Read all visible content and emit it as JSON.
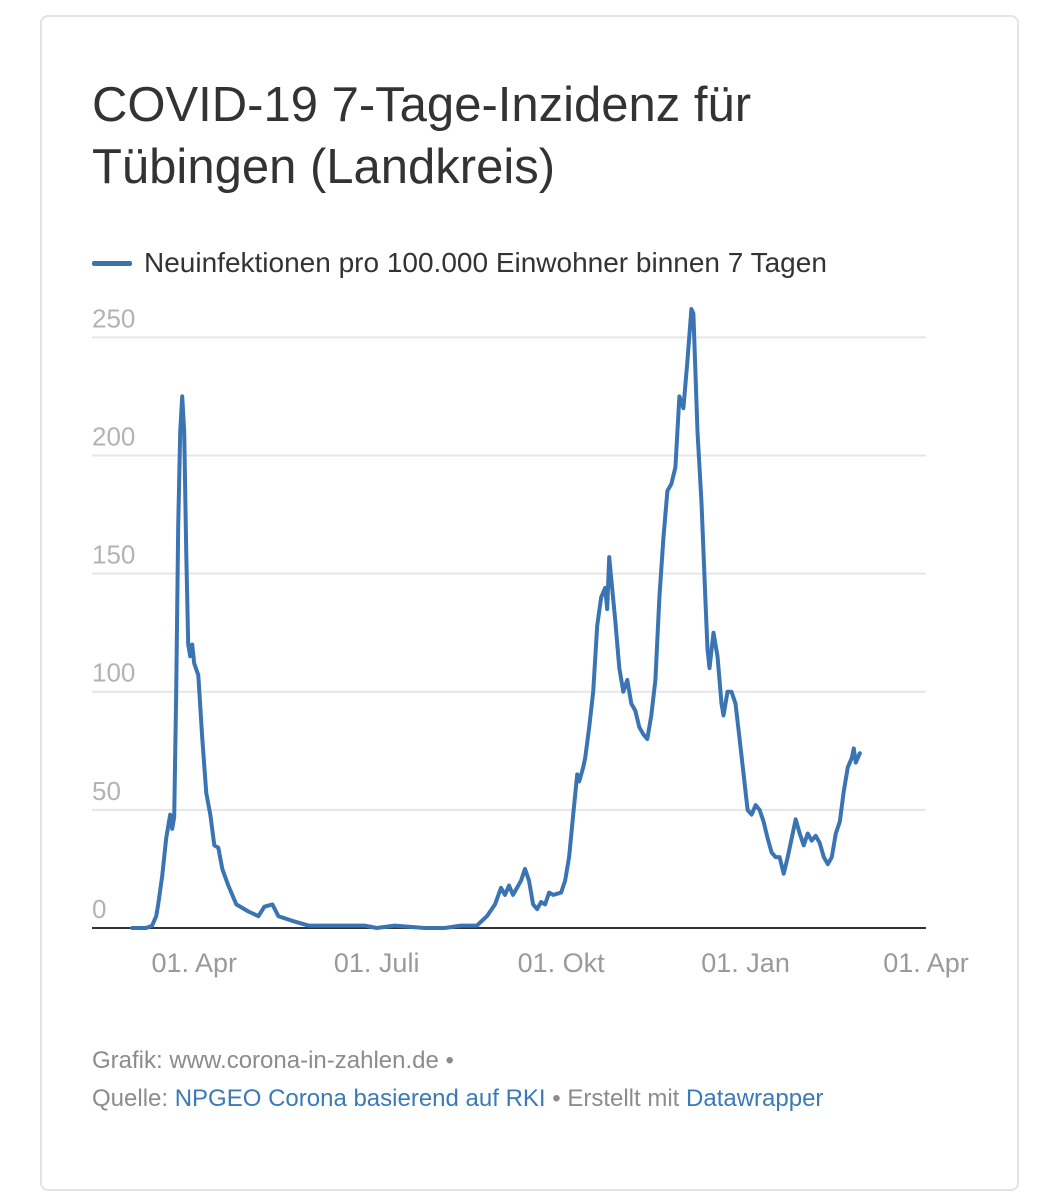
{
  "chart_data": {
    "type": "line",
    "title": "COVID-19 7-Tage-Inzidenz für Tübingen (Landkreis)",
    "legend": {
      "position": "top-left"
    },
    "series": [
      {
        "name": "Neuinfektionen pro 100.000 Einwohner binnen 7 Tagen",
        "color": "#3a74b3",
        "points": [
          [
            "2020-03-01",
            0
          ],
          [
            "2020-03-08",
            0
          ],
          [
            "2020-03-11",
            1
          ],
          [
            "2020-03-13",
            5
          ],
          [
            "2020-03-14",
            10
          ],
          [
            "2020-03-16",
            22
          ],
          [
            "2020-03-18",
            38
          ],
          [
            "2020-03-20",
            48
          ],
          [
            "2020-03-21",
            42
          ],
          [
            "2020-03-22",
            47
          ],
          [
            "2020-03-23",
            100
          ],
          [
            "2020-03-24",
            170
          ],
          [
            "2020-03-25",
            210
          ],
          [
            "2020-03-26",
            225
          ],
          [
            "2020-03-27",
            210
          ],
          [
            "2020-03-28",
            160
          ],
          [
            "2020-03-29",
            120
          ],
          [
            "2020-03-30",
            115
          ],
          [
            "2020-03-31",
            120
          ],
          [
            "2020-04-01",
            112
          ],
          [
            "2020-04-03",
            107
          ],
          [
            "2020-04-05",
            80
          ],
          [
            "2020-04-07",
            57
          ],
          [
            "2020-04-09",
            48
          ],
          [
            "2020-04-11",
            35
          ],
          [
            "2020-04-13",
            34
          ],
          [
            "2020-04-15",
            25
          ],
          [
            "2020-04-18",
            18
          ],
          [
            "2020-04-22",
            10
          ],
          [
            "2020-04-28",
            7
          ],
          [
            "2020-05-03",
            5
          ],
          [
            "2020-05-06",
            9
          ],
          [
            "2020-05-10",
            10
          ],
          [
            "2020-05-13",
            5
          ],
          [
            "2020-05-20",
            3
          ],
          [
            "2020-05-28",
            1
          ],
          [
            "2020-06-10",
            1
          ],
          [
            "2020-06-25",
            1
          ],
          [
            "2020-07-01",
            0
          ],
          [
            "2020-07-10",
            1
          ],
          [
            "2020-07-25",
            0
          ],
          [
            "2020-08-04",
            0
          ],
          [
            "2020-08-12",
            1
          ],
          [
            "2020-08-20",
            1
          ],
          [
            "2020-08-25",
            5
          ],
          [
            "2020-08-29",
            10
          ],
          [
            "2020-09-01",
            17
          ],
          [
            "2020-09-03",
            14
          ],
          [
            "2020-09-05",
            18
          ],
          [
            "2020-09-07",
            14
          ],
          [
            "2020-09-09",
            17
          ],
          [
            "2020-09-11",
            20
          ],
          [
            "2020-09-13",
            25
          ],
          [
            "2020-09-15",
            20
          ],
          [
            "2020-09-17",
            10
          ],
          [
            "2020-09-19",
            8
          ],
          [
            "2020-09-21",
            11
          ],
          [
            "2020-09-23",
            10
          ],
          [
            "2020-09-25",
            15
          ],
          [
            "2020-09-27",
            14
          ],
          [
            "2020-10-01",
            15
          ],
          [
            "2020-10-03",
            20
          ],
          [
            "2020-10-05",
            30
          ],
          [
            "2020-10-07",
            48
          ],
          [
            "2020-10-09",
            65
          ],
          [
            "2020-10-10",
            62
          ],
          [
            "2020-10-12",
            68
          ],
          [
            "2020-10-13",
            72
          ],
          [
            "2020-10-15",
            85
          ],
          [
            "2020-10-17",
            100
          ],
          [
            "2020-10-19",
            128
          ],
          [
            "2020-10-21",
            140
          ],
          [
            "2020-10-23",
            144
          ],
          [
            "2020-10-24",
            135
          ],
          [
            "2020-10-25",
            157
          ],
          [
            "2020-10-26",
            148
          ],
          [
            "2020-10-28",
            130
          ],
          [
            "2020-10-30",
            110
          ],
          [
            "2020-11-01",
            100
          ],
          [
            "2020-11-03",
            105
          ],
          [
            "2020-11-05",
            95
          ],
          [
            "2020-11-07",
            92
          ],
          [
            "2020-11-09",
            85
          ],
          [
            "2020-11-11",
            82
          ],
          [
            "2020-11-13",
            80
          ],
          [
            "2020-11-15",
            90
          ],
          [
            "2020-11-17",
            105
          ],
          [
            "2020-11-19",
            140
          ],
          [
            "2020-11-21",
            165
          ],
          [
            "2020-11-23",
            185
          ],
          [
            "2020-11-25",
            188
          ],
          [
            "2020-11-27",
            195
          ],
          [
            "2020-11-29",
            225
          ],
          [
            "2020-12-01",
            220
          ],
          [
            "2020-12-03",
            240
          ],
          [
            "2020-12-05",
            262
          ],
          [
            "2020-12-06",
            260
          ],
          [
            "2020-12-08",
            210
          ],
          [
            "2020-12-10",
            180
          ],
          [
            "2020-12-12",
            138
          ],
          [
            "2020-12-13",
            118
          ],
          [
            "2020-12-14",
            110
          ],
          [
            "2020-12-16",
            125
          ],
          [
            "2020-12-18",
            115
          ],
          [
            "2020-12-20",
            95
          ],
          [
            "2020-12-21",
            90
          ],
          [
            "2020-12-23",
            100
          ],
          [
            "2020-12-25",
            100
          ],
          [
            "2020-12-27",
            95
          ],
          [
            "2020-12-29",
            80
          ],
          [
            "2020-12-31",
            65
          ],
          [
            "2021-01-02",
            50
          ],
          [
            "2021-01-04",
            48
          ],
          [
            "2021-01-06",
            52
          ],
          [
            "2021-01-08",
            50
          ],
          [
            "2021-01-10",
            45
          ],
          [
            "2021-01-12",
            38
          ],
          [
            "2021-01-14",
            32
          ],
          [
            "2021-01-16",
            30
          ],
          [
            "2021-01-18",
            30
          ],
          [
            "2021-01-20",
            23
          ],
          [
            "2021-01-22",
            30
          ],
          [
            "2021-01-24",
            38
          ],
          [
            "2021-01-26",
            46
          ],
          [
            "2021-01-28",
            40
          ],
          [
            "2021-01-30",
            35
          ],
          [
            "2021-02-01",
            40
          ],
          [
            "2021-02-03",
            37
          ],
          [
            "2021-02-05",
            39
          ],
          [
            "2021-02-07",
            36
          ],
          [
            "2021-02-09",
            30
          ],
          [
            "2021-02-11",
            27
          ],
          [
            "2021-02-13",
            30
          ],
          [
            "2021-02-15",
            40
          ],
          [
            "2021-02-17",
            45
          ],
          [
            "2021-02-19",
            58
          ],
          [
            "2021-02-21",
            68
          ],
          [
            "2021-02-23",
            72
          ],
          [
            "2021-02-24",
            76
          ],
          [
            "2021-02-25",
            70
          ],
          [
            "2021-02-27",
            74
          ]
        ]
      }
    ],
    "x_axis": {
      "type": "date",
      "range": [
        "2020-02-10",
        "2021-04-01"
      ],
      "ticks": [
        {
          "date": "2020-04-01",
          "label": "01. Apr"
        },
        {
          "date": "2020-07-01",
          "label": "01. Juli"
        },
        {
          "date": "2020-10-01",
          "label": "01. Okt"
        },
        {
          "date": "2021-01-01",
          "label": "01. Jan"
        },
        {
          "date": "2021-04-01",
          "label": "01. Apr"
        }
      ]
    },
    "y_axis": {
      "range": [
        0,
        262
      ],
      "ticks": [
        0,
        50,
        100,
        150,
        200,
        250
      ],
      "grid": true
    }
  },
  "footer": {
    "graphic_prefix": "Grafik:",
    "graphic_site": "www.corona-in-zahlen.de",
    "separator": "•",
    "source_prefix": "Quelle:",
    "source_link": "NPGEO Corona basierend auf RKI",
    "made_with_prefix": "Erstellt mit",
    "made_with_link": "Datawrapper"
  }
}
